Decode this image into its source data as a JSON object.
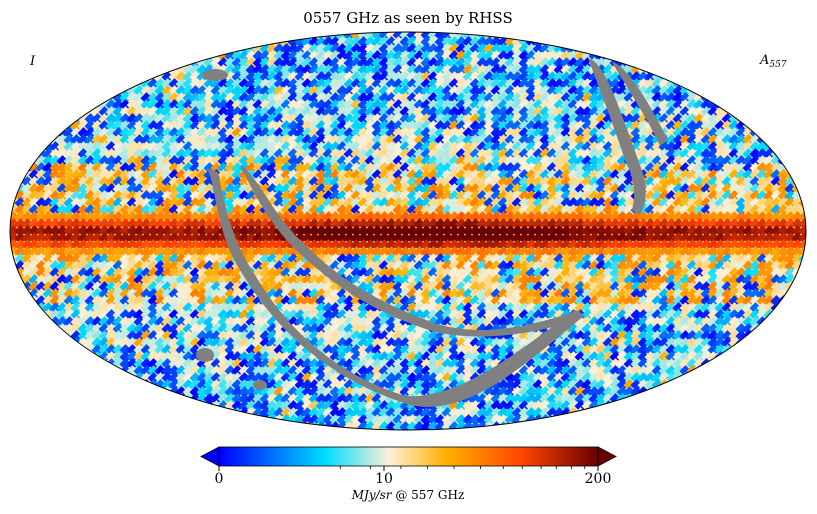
{
  "chart_data": {
    "type": "heatmap",
    "projection": "mollweide",
    "title": "0557 GHz as seen by RHSS",
    "left_label": "I",
    "right_label_base": "A",
    "right_label_sub": "557",
    "colorbar": {
      "scale": "log",
      "min": 0,
      "max": 200,
      "ticks": [
        "0",
        "10",
        "200"
      ],
      "unit_label_main": "MJy/sr",
      "unit_label_rest": " @ 557 GHz",
      "extend": "both",
      "colors": [
        "#0000ff",
        "#00ddff",
        "#fff0d8",
        "#ffb000",
        "#ff4400",
        "#6a0000"
      ]
    },
    "masked_color": "#808080",
    "features": {
      "galactic_plane": "high intensity band along the equator (up to 200 MJy/sr)",
      "high_latitude": "noisy low values 0-10 MJy/sr",
      "masked_regions": [
        "masked arc band 1",
        "masked arc band 2",
        "masked arc band 3"
      ]
    }
  }
}
